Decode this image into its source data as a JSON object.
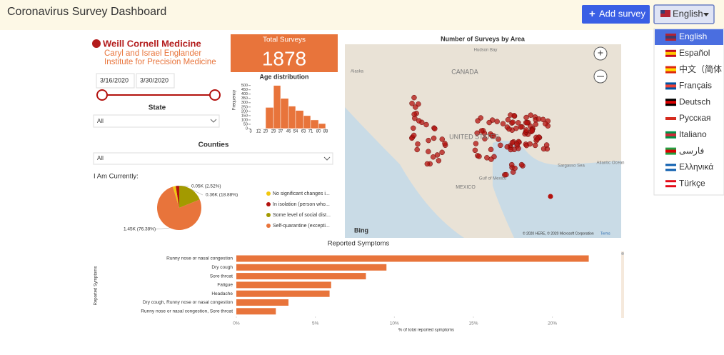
{
  "header": {
    "title": "Coronavirus Survey Dashboard",
    "add_button": "Add survey",
    "language": "English"
  },
  "languages": [
    "English",
    "Español",
    "中文（简体",
    "Français",
    "Deutsch",
    "Русская",
    "Italiano",
    "فارسی",
    "Ελληνικά",
    "Türkçe"
  ],
  "logo": {
    "name": "Weill Cornell Medicine",
    "line1": "Caryl and Israel Englander",
    "line2": "Institute for Precision Medicine"
  },
  "dates": [
    "3/16/2020",
    "3/30/2020"
  ],
  "filters": {
    "state_label": "State",
    "state_value": "All",
    "counties_label": "Counties",
    "counties_value": "All"
  },
  "total": {
    "label": "Total Surveys",
    "value": 1878
  },
  "map": {
    "title": "Number of Surveys by Area",
    "labels": [
      "CANADA",
      "UNITED STATES",
      "MEXICO",
      "Alaska",
      "Hudson Bay",
      "Gulf of Mexico",
      "Sargasso Sea",
      "Atlantic Ocean"
    ],
    "provider": "Bing",
    "attribution": "© 2020 HERE, © 2020 Microsoft Corporation",
    "terms": "Terms"
  },
  "chart_data": [
    {
      "type": "histogram",
      "title": "Age distribution",
      "y_label": "Frequency",
      "color": "#e8743b",
      "bins": [
        3,
        12,
        20,
        29,
        37,
        46,
        54,
        63,
        71,
        80,
        88
      ],
      "counts": [
        0,
        5,
        245,
        500,
        350,
        260,
        210,
        150,
        100,
        58
      ],
      "xlim": [
        3,
        88
      ],
      "ylim": [
        0,
        530
      ],
      "yticks": [
        0,
        50,
        100,
        150,
        200,
        250,
        300,
        350,
        400,
        450,
        500
      ]
    },
    {
      "type": "pie",
      "title": "I Am Currently:",
      "categories": [
        "No significant changes i...",
        "In isolation (person who...",
        "Some level of social dist...",
        "Self-quarantine (excepti..."
      ],
      "values": [
        2.22,
        2.52,
        18.88,
        76.38
      ],
      "value_labels": [
        null,
        "0.05K (2.52%)",
        "0.36K (18.88%)",
        "1.45K (76.38%)"
      ],
      "colors": [
        "#f2c80f",
        "#b3120e",
        "#a39a00",
        "#e8743b"
      ]
    },
    {
      "type": "hbar",
      "title": "Reported Symptoms",
      "y_label": "Reported Symptoms",
      "x_label": "% of total reported symptoms",
      "color": "#e8743b",
      "categories": [
        "Runny nose or nasal congestion",
        "Dry cough",
        "Sore throat",
        "Fatigue",
        "Headache",
        "Dry cough, Runny nose or nasal congestion",
        "Runny nose or nasal congestion, Sore throat"
      ],
      "values": [
        22.3,
        9.5,
        8.2,
        6.0,
        5.9,
        3.3,
        2.5
      ],
      "xlim": [
        0,
        22.5
      ],
      "xticks": [
        {
          "value": 0,
          "label": "0%"
        },
        {
          "value": 5,
          "label": "5%"
        },
        {
          "value": 10,
          "label": "10%"
        },
        {
          "value": 15,
          "label": "15%"
        },
        {
          "value": 20,
          "label": "20%"
        }
      ]
    }
  ]
}
